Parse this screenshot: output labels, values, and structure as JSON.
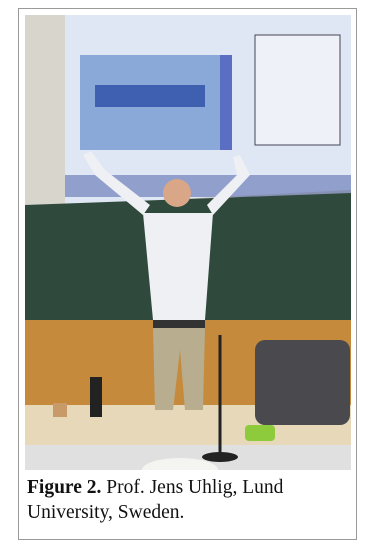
{
  "figure": {
    "label": "Figure 2.",
    "caption": "Prof. Jens Uhlig, Lund University, Sweden."
  }
}
